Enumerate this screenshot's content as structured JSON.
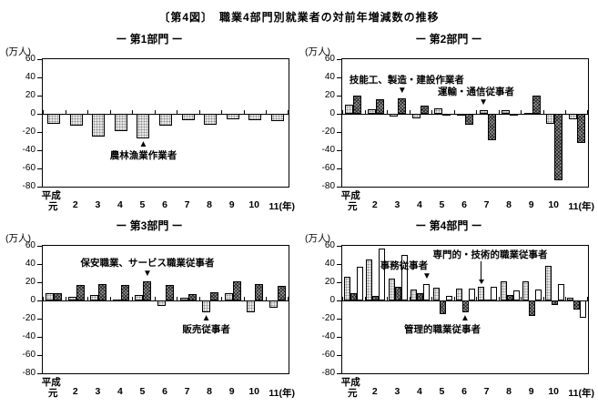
{
  "page_title": "〔第4図〕　職業4部門別就業者の対前年増減数の推移",
  "colors": {
    "ink": "#000000",
    "paper": "#ffffff",
    "light_fill": "#e7e7e7",
    "dark_fill": "#9a9a9a",
    "white_fill": "#ffffff"
  },
  "axis": {
    "unit_label": "(万人)",
    "y_ticks": [
      "60",
      "40",
      "20",
      "0",
      "-20",
      "-40",
      "-60",
      "-80"
    ],
    "era_label": "平成",
    "x_labels": [
      "元",
      "2",
      "3",
      "4",
      "5",
      "6",
      "7",
      "8",
      "9",
      "10",
      "11(年)"
    ]
  },
  "chart_data": [
    {
      "type": "bar",
      "title": "ー 第1部門 ー",
      "ylabel": "(万人)",
      "ylim": [
        -80,
        60
      ],
      "grid": false,
      "categories": [
        "平成元",
        "2",
        "3",
        "4",
        "5",
        "6",
        "7",
        "8",
        "9",
        "10",
        "11"
      ],
      "series": [
        {
          "name": "農林漁業作業者",
          "style": "dotted",
          "values": [
            -11,
            -13,
            -25,
            -19,
            -27,
            -13,
            -7,
            -12,
            -6,
            -7,
            -8
          ]
        }
      ],
      "annotations": [
        {
          "text": "農林漁業作業者",
          "marker": "tri-up",
          "year": 4,
          "series": 0,
          "dx": 0
        }
      ]
    },
    {
      "type": "bar",
      "title": "ー 第2部門 ー",
      "ylabel": "(万人)",
      "ylim": [
        -80,
        60
      ],
      "grid": false,
      "categories": [
        "平成元",
        "2",
        "3",
        "4",
        "5",
        "6",
        "7",
        "8",
        "9",
        "10",
        "11"
      ],
      "series": [
        {
          "name": "運輸・通信従事者",
          "style": "dotted",
          "values": [
            10,
            5,
            -3,
            -5,
            6,
            -2,
            4,
            4,
            1,
            -11,
            -6
          ]
        },
        {
          "name": "技能工、製造・建設作業者",
          "style": "dark",
          "values": [
            20,
            16,
            17,
            9,
            -1,
            -12,
            -29,
            -2,
            20,
            -73,
            -32
          ]
        }
      ],
      "annotations": [
        {
          "text": "技能工、製造・建設作業者",
          "marker": "tri-down",
          "year": 2,
          "series": 1,
          "dx": 5
        },
        {
          "text": "運輸・通信従事者",
          "marker": "tri-down",
          "year": 6,
          "series": 0,
          "dx": -8
        }
      ]
    },
    {
      "type": "bar",
      "title": "ー 第3部門 ー",
      "ylabel": "(万人)",
      "ylim": [
        -80,
        60
      ],
      "grid": false,
      "categories": [
        "平成元",
        "2",
        "3",
        "4",
        "5",
        "6",
        "7",
        "8",
        "9",
        "10",
        "11"
      ],
      "series": [
        {
          "name": "販売従事者",
          "style": "dotted",
          "values": [
            8,
            4,
            6,
            1,
            6,
            -6,
            3,
            -13,
            8,
            -13,
            -8
          ]
        },
        {
          "name": "保安職業、サービス職業従事者",
          "style": "dark",
          "values": [
            8,
            17,
            18,
            17,
            21,
            17,
            7,
            9,
            21,
            18,
            16
          ]
        }
      ],
      "annotations": [
        {
          "text": "保安職業、サービス職業従事者",
          "marker": "tri-down",
          "year": 4,
          "series": 1,
          "dx": 0
        },
        {
          "text": "販売従事者",
          "marker": "tri-up",
          "year": 7,
          "series": 0,
          "dx": 0
        }
      ]
    },
    {
      "type": "bar",
      "title": "ー 第4部門 ー",
      "ylabel": "(万人)",
      "ylim": [
        -80,
        60
      ],
      "grid": false,
      "categories": [
        "平成元",
        "2",
        "3",
        "4",
        "5",
        "6",
        "7",
        "8",
        "9",
        "10",
        "11"
      ],
      "series": [
        {
          "name": "専門的・技術的職業従事者",
          "style": "dotted",
          "values": [
            26,
            45,
            24,
            12,
            14,
            13,
            15,
            21,
            21,
            38,
            3
          ]
        },
        {
          "name": "管理的職業従事者",
          "style": "dark",
          "values": [
            8,
            5,
            15,
            8,
            -15,
            -13,
            1,
            6,
            -17,
            -5,
            -10
          ]
        },
        {
          "name": "事務従事者",
          "style": "white",
          "values": [
            37,
            57,
            50,
            18,
            5,
            13,
            15,
            11,
            12,
            18,
            -19
          ]
        }
      ],
      "annotations": [
        {
          "text": "事務従事者",
          "marker": "tri-down",
          "year": 3,
          "series": 2,
          "dx": -25
        },
        {
          "text": "専門的・技術的職業従事者",
          "marker": "arrow",
          "year": 6,
          "series": 0,
          "dx": 10,
          "len": 24
        },
        {
          "text": "管理的職業従事者",
          "marker": "tri-up",
          "year": 5,
          "series": 1,
          "dx": -25
        }
      ]
    }
  ]
}
